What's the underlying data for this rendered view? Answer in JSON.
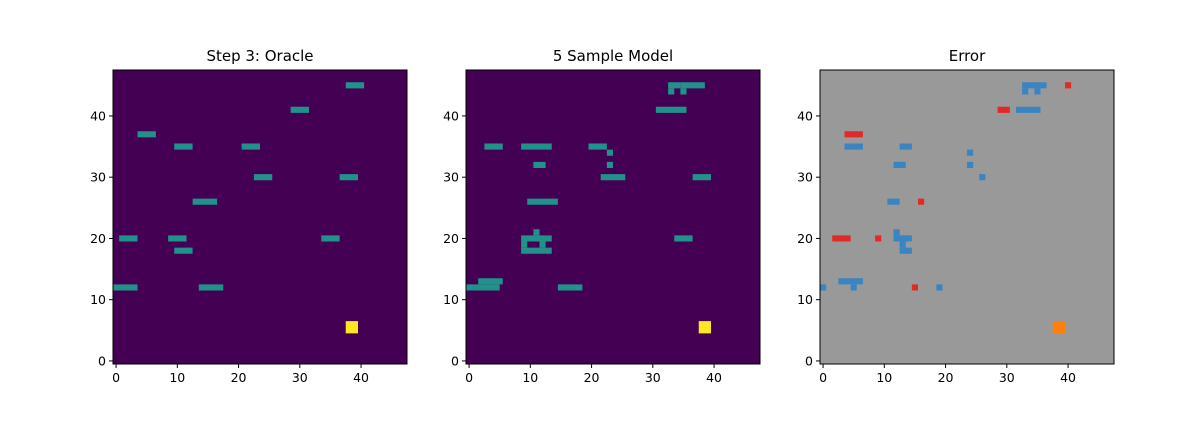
{
  "chart_data": [
    {
      "type": "heatmap",
      "title": "Step 3: Oracle",
      "xlim": [
        -0.5,
        47.5
      ],
      "ylim": [
        -0.5,
        47.5
      ],
      "x_ticks": [
        0,
        10,
        20,
        30,
        40
      ],
      "y_ticks": [
        0,
        10,
        20,
        30,
        40
      ],
      "grid": false,
      "colors": {
        "background": "#440154",
        "car": "#21918c",
        "target": "#fde725"
      },
      "cells": [
        {
          "x": 38,
          "y": 45,
          "w": 3,
          "value": "car"
        },
        {
          "x": 29,
          "y": 41,
          "w": 3,
          "value": "car"
        },
        {
          "x": 4,
          "y": 37,
          "w": 3,
          "value": "car"
        },
        {
          "x": 10,
          "y": 35,
          "w": 3,
          "value": "car"
        },
        {
          "x": 21,
          "y": 35,
          "w": 3,
          "value": "car"
        },
        {
          "x": 23,
          "y": 30,
          "w": 3,
          "value": "car"
        },
        {
          "x": 37,
          "y": 30,
          "w": 3,
          "value": "car"
        },
        {
          "x": 13,
          "y": 26,
          "w": 4,
          "value": "car"
        },
        {
          "x": 1,
          "y": 20,
          "w": 3,
          "value": "car"
        },
        {
          "x": 9,
          "y": 20,
          "w": 3,
          "value": "car"
        },
        {
          "x": 34,
          "y": 20,
          "w": 3,
          "value": "car"
        },
        {
          "x": 10,
          "y": 18,
          "w": 3,
          "value": "car"
        },
        {
          "x": 0,
          "y": 12,
          "w": 4,
          "value": "car"
        },
        {
          "x": 14,
          "y": 12,
          "w": 4,
          "value": "car"
        },
        {
          "x": 38,
          "y": 5,
          "w": 2,
          "h": 2,
          "value": "target"
        }
      ]
    },
    {
      "type": "heatmap",
      "title": "5 Sample Model",
      "xlim": [
        -0.5,
        47.5
      ],
      "ylim": [
        -0.5,
        47.5
      ],
      "x_ticks": [
        0,
        10,
        20,
        30,
        40
      ],
      "y_ticks": [
        0,
        10,
        20,
        30,
        40
      ],
      "grid": false,
      "colors": {
        "background": "#440154",
        "car": "#21918c",
        "target": "#fde725"
      },
      "cells": [
        {
          "x": 33,
          "y": 45,
          "w": 2,
          "value": "car"
        },
        {
          "x": 35,
          "y": 45,
          "w": 4,
          "value": "car"
        },
        {
          "x": 33,
          "y": 44,
          "value": "car"
        },
        {
          "x": 35,
          "y": 44,
          "value": "car"
        },
        {
          "x": 31,
          "y": 41,
          "w": 5,
          "value": "car"
        },
        {
          "x": 3,
          "y": 35,
          "w": 3,
          "value": "car"
        },
        {
          "x": 9,
          "y": 35,
          "w": 5,
          "value": "car"
        },
        {
          "x": 20,
          "y": 35,
          "w": 3,
          "value": "car"
        },
        {
          "x": 23,
          "y": 34,
          "value": "car"
        },
        {
          "x": 11,
          "y": 32,
          "w": 2,
          "value": "car"
        },
        {
          "x": 23,
          "y": 32,
          "value": "car"
        },
        {
          "x": 22,
          "y": 30,
          "w": 4,
          "value": "car"
        },
        {
          "x": 37,
          "y": 30,
          "w": 3,
          "value": "car"
        },
        {
          "x": 10,
          "y": 26,
          "w": 5,
          "value": "car"
        },
        {
          "x": 11,
          "y": 21,
          "value": "car"
        },
        {
          "x": 9,
          "y": 20,
          "w": 5,
          "value": "car"
        },
        {
          "x": 34,
          "y": 20,
          "w": 3,
          "value": "car"
        },
        {
          "x": 9,
          "y": 19,
          "value": "car"
        },
        {
          "x": 12,
          "y": 19,
          "value": "car"
        },
        {
          "x": 9,
          "y": 18,
          "w": 5,
          "value": "car"
        },
        {
          "x": 2,
          "y": 13,
          "w": 4,
          "value": "car"
        },
        {
          "x": -0.5,
          "y": 12,
          "w": 6,
          "value": "car"
        },
        {
          "x": 15,
          "y": 12,
          "w": 4,
          "value": "car"
        },
        {
          "x": 38,
          "y": 5,
          "w": 2,
          "h": 2,
          "value": "target"
        }
      ]
    },
    {
      "type": "heatmap",
      "title": "Error",
      "xlim": [
        -0.5,
        47.5
      ],
      "ylim": [
        -0.5,
        47.5
      ],
      "x_ticks": [
        0,
        10,
        20,
        30,
        40
      ],
      "y_ticks": [
        0,
        10,
        20,
        30,
        40
      ],
      "grid": false,
      "colors": {
        "background": "#999999",
        "model_only": "#3a84c1",
        "oracle_only": "#e22929",
        "target": "#ff7f0e"
      },
      "cells": [
        {
          "x": 33,
          "y": 45,
          "w": 2,
          "value": "model_only"
        },
        {
          "x": 35,
          "y": 45,
          "w": 2,
          "value": "model_only"
        },
        {
          "x": 33,
          "y": 44,
          "value": "model_only"
        },
        {
          "x": 35,
          "y": 44,
          "value": "model_only"
        },
        {
          "x": 40,
          "y": 45,
          "value": "oracle_only"
        },
        {
          "x": 29,
          "y": 41,
          "w": 2,
          "value": "oracle_only"
        },
        {
          "x": 32,
          "y": 41,
          "w": 4,
          "value": "model_only"
        },
        {
          "x": 4,
          "y": 37,
          "w": 3,
          "value": "oracle_only"
        },
        {
          "x": 4,
          "y": 35,
          "w": 3,
          "value": "model_only"
        },
        {
          "x": 13,
          "y": 35,
          "w": 2,
          "value": "model_only"
        },
        {
          "x": 24,
          "y": 34,
          "value": "model_only"
        },
        {
          "x": 12,
          "y": 32,
          "w": 2,
          "value": "model_only"
        },
        {
          "x": 24,
          "y": 32,
          "value": "model_only"
        },
        {
          "x": 26,
          "y": 30,
          "value": "model_only"
        },
        {
          "x": 11,
          "y": 26,
          "w": 2,
          "value": "model_only"
        },
        {
          "x": 16,
          "y": 26,
          "value": "oracle_only"
        },
        {
          "x": 12,
          "y": 21,
          "value": "model_only"
        },
        {
          "x": 2,
          "y": 20,
          "w": 3,
          "value": "oracle_only"
        },
        {
          "x": 9,
          "y": 20,
          "value": "oracle_only"
        },
        {
          "x": 12,
          "y": 20,
          "w": 3,
          "value": "model_only"
        },
        {
          "x": 13,
          "y": 19,
          "value": "model_only"
        },
        {
          "x": 13,
          "y": 18,
          "w": 2,
          "value": "model_only"
        },
        {
          "x": 3,
          "y": 13,
          "w": 4,
          "value": "model_only"
        },
        {
          "x": 0,
          "y": 12,
          "value": "model_only"
        },
        {
          "x": 5,
          "y": 12,
          "value": "model_only"
        },
        {
          "x": 15,
          "y": 12,
          "value": "oracle_only"
        },
        {
          "x": 19,
          "y": 12,
          "value": "model_only"
        },
        {
          "x": 38,
          "y": 5,
          "w": 2,
          "h": 2,
          "value": "target"
        }
      ]
    }
  ]
}
